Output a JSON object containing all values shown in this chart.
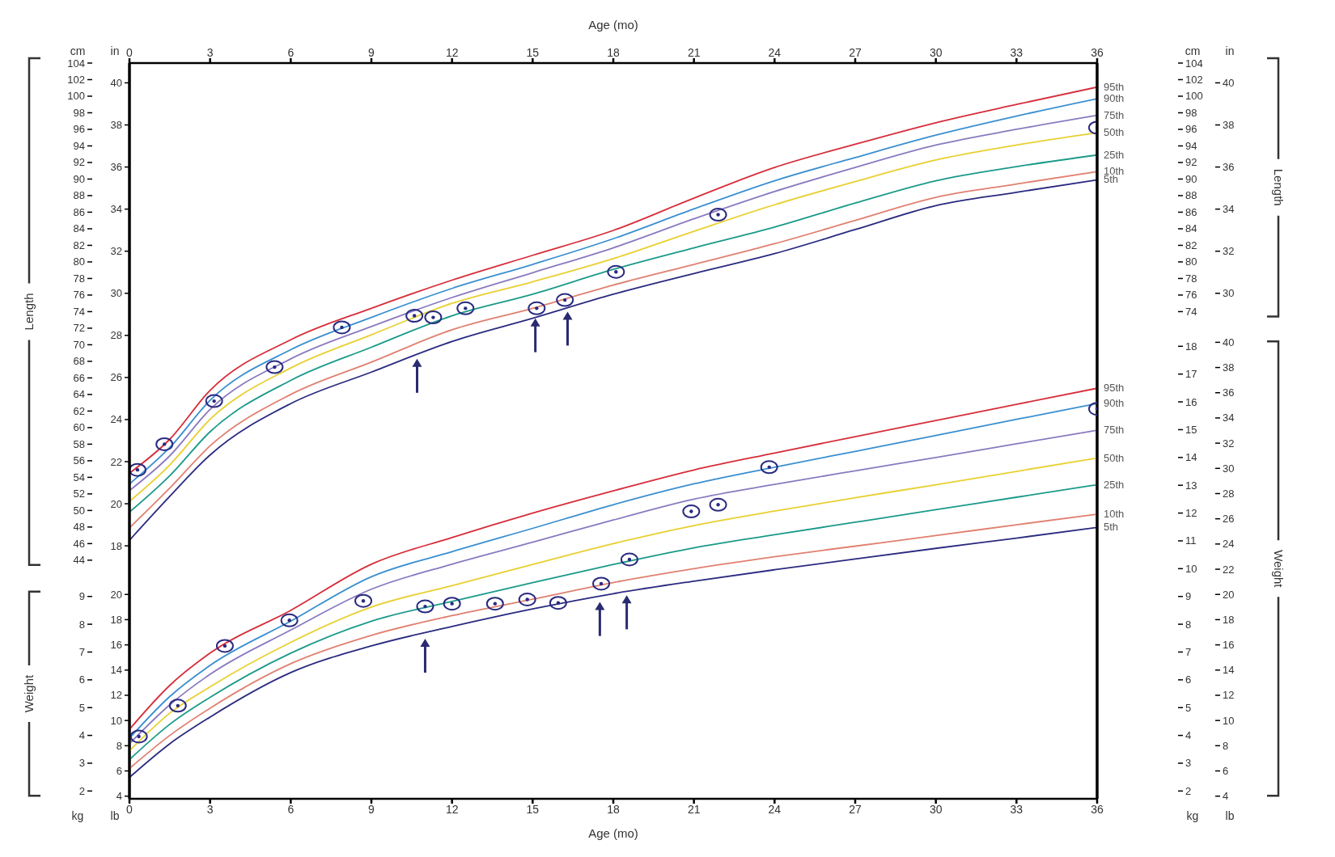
{
  "chart_data": [
    {
      "type": "line",
      "xlabel": "Age (mo)",
      "xlim": [
        0,
        36
      ],
      "xticks": [
        0,
        3,
        6,
        9,
        12,
        15,
        18,
        21,
        24,
        27,
        30,
        33,
        36
      ],
      "ylabel": "cm",
      "ylim": [
        15.2,
        104
      ],
      "yticks": [
        44,
        46,
        48,
        50,
        52,
        54,
        56,
        58,
        60,
        62,
        64,
        66,
        68,
        70,
        72,
        74,
        76,
        78,
        80,
        82,
        84,
        86,
        88,
        90,
        92,
        94,
        96,
        98,
        100,
        102,
        104
      ],
      "y2label": "cm",
      "y2lim": [
        15.2,
        104
      ],
      "y2ticks": [
        74,
        76,
        78,
        80,
        82,
        84,
        86,
        88,
        90,
        92,
        94,
        96,
        98,
        100,
        102,
        104
      ],
      "annotations": [
        "Length"
      ],
      "grid": false,
      "legend": false,
      "marker": "none",
      "line_style": "solid",
      "x": [
        0,
        1.5,
        3,
        6,
        9,
        12,
        15,
        18,
        21,
        24,
        27,
        30,
        33,
        36
      ],
      "series": [
        {
          "name": "95th",
          "color": "#d62d3a",
          "values": [
            54.5,
            58.6,
            64.5,
            70.6,
            74.4,
            77.8,
            80.8,
            83.8,
            87.7,
            91.4,
            94.2,
            96.8,
            99.0,
            101.1
          ]
        },
        {
          "name": "90th",
          "color": "#3a8fd0",
          "values": [
            53.2,
            57.6,
            63.3,
            69.4,
            73.3,
            76.8,
            79.7,
            82.8,
            86.4,
            89.8,
            92.6,
            95.3,
            97.6,
            99.7
          ]
        },
        {
          "name": "75th",
          "color": "#8a7ac0",
          "values": [
            52.4,
            56.6,
            62.2,
            68.3,
            72.2,
            75.7,
            78.7,
            81.7,
            85.2,
            88.5,
            91.4,
            94.1,
            96.0,
            97.7
          ]
        },
        {
          "name": "50th",
          "color": "#e8d030",
          "values": [
            51.1,
            55.5,
            61.0,
            67.2,
            71.2,
            75.0,
            77.6,
            80.4,
            83.7,
            86.9,
            89.7,
            92.3,
            94.1,
            95.6
          ]
        },
        {
          "name": "25th",
          "color": "#1a9a8a",
          "values": [
            49.8,
            54.2,
            59.5,
            65.7,
            69.7,
            73.5,
            76.1,
            79.1,
            81.7,
            84.2,
            87.1,
            89.8,
            91.5,
            92.9
          ]
        },
        {
          "name": "10th",
          "color": "#e08070",
          "values": [
            47.9,
            52.7,
            57.8,
            64.0,
            67.9,
            71.8,
            74.4,
            77.2,
            79.7,
            82.2,
            85.0,
            87.8,
            89.4,
            90.9
          ]
        },
        {
          "name": "5th",
          "color": "#2a2a80",
          "values": [
            46.4,
            51.7,
            56.7,
            62.9,
            66.7,
            70.4,
            73.2,
            76.1,
            78.6,
            81.0,
            83.9,
            86.8,
            88.4,
            89.9
          ]
        },
        {
          "type": "scatter",
          "marker": "circle",
          "color": "#2a2a80",
          "x": [
            0.3,
            1.3,
            3.15,
            5.4,
            7.9,
            10.6,
            11.3,
            12.5,
            15.15,
            16.2,
            18.1,
            21.9,
            36
          ],
          "values": [
            54.9,
            58.0,
            63.2,
            67.3,
            72.1,
            73.5,
            73.3,
            74.4,
            74.4,
            75.4,
            78.8,
            85.7,
            96.2
          ]
        }
      ]
    },
    {
      "type": "line",
      "xlim": [
        0,
        36
      ],
      "tick_labels": "y",
      "ylabel": "in",
      "ylim": [
        5.98,
        40.94
      ],
      "yticks": [
        18,
        20,
        22,
        24,
        26,
        28,
        30,
        32,
        34,
        36,
        38,
        40
      ],
      "y2label": "in",
      "y2lim": [
        5.98,
        40.94
      ],
      "y2ticks": [
        30,
        32,
        34,
        36,
        38,
        40
      ]
    },
    {
      "type": "line",
      "xlabel": "Age (mo)",
      "xlim": [
        0,
        36
      ],
      "xticks": [
        0,
        3,
        6,
        9,
        12,
        15,
        18,
        21,
        24,
        27,
        30,
        33,
        36
      ],
      "ylabel": "kg",
      "ylim": [
        1.72,
        28.19
      ],
      "yticks": [
        2,
        3,
        4,
        5,
        6,
        7,
        8,
        9
      ],
      "y2label": "kg",
      "y2lim": [
        1.72,
        28.19
      ],
      "y2ticks": [
        2,
        3,
        4,
        5,
        6,
        7,
        8,
        9,
        10,
        11,
        12,
        13,
        14,
        15,
        16,
        17,
        18
      ],
      "annotations": [
        "Weight"
      ],
      "grid": false,
      "legend": false,
      "marker": "none",
      "line_style": "solid",
      "x": [
        0,
        1.5,
        3,
        6,
        9,
        12,
        15,
        18,
        21,
        24,
        27,
        30,
        33,
        36
      ],
      "series": [
        {
          "name": "95th",
          "color": "#d62d3a",
          "values": [
            4.22,
            5.8,
            6.96,
            8.5,
            10.16,
            11.12,
            12.0,
            12.8,
            13.55,
            14.16,
            14.75,
            15.33,
            15.91,
            16.49
          ]
        },
        {
          "name": "90th",
          "color": "#3a8fd0",
          "values": [
            3.9,
            5.4,
            6.52,
            8.11,
            9.71,
            10.61,
            11.45,
            12.3,
            13.05,
            13.65,
            14.22,
            14.79,
            15.37,
            15.94
          ]
        },
        {
          "name": "75th",
          "color": "#8a7ac0",
          "values": [
            3.7,
            5.1,
            6.2,
            7.79,
            9.26,
            10.16,
            10.95,
            11.75,
            12.5,
            13.03,
            13.52,
            14.0,
            14.49,
            14.98
          ]
        },
        {
          "name": "50th",
          "color": "#e8d030",
          "values": [
            3.45,
            4.8,
            5.75,
            7.35,
            8.62,
            9.39,
            10.15,
            10.9,
            11.55,
            12.07,
            12.55,
            13.02,
            13.5,
            13.98
          ]
        },
        {
          "name": "25th",
          "color": "#1a9a8a",
          "values": [
            3.13,
            4.4,
            5.37,
            6.96,
            8.11,
            8.82,
            9.5,
            10.15,
            10.75,
            11.22,
            11.67,
            12.12,
            12.57,
            13.02
          ]
        },
        {
          "name": "10th",
          "color": "#e08070",
          "values": [
            2.81,
            4.0,
            4.98,
            6.58,
            7.6,
            8.31,
            8.9,
            9.5,
            10.0,
            10.43,
            10.81,
            11.19,
            11.58,
            11.96
          ]
        },
        {
          "name": "5th",
          "color": "#2a2a80",
          "values": [
            2.49,
            3.7,
            4.66,
            6.26,
            7.22,
            7.92,
            8.55,
            9.1,
            9.55,
            9.96,
            10.35,
            10.73,
            11.1,
            11.48
          ]
        },
        {
          "type": "scatter",
          "marker": "circle",
          "color": "#2a2a80",
          "x": [
            0.35,
            1.8,
            3.55,
            5.95,
            8.7,
            11.0,
            12.0,
            13.6,
            14.8,
            15.95,
            17.55,
            18.6,
            20.9,
            21.9,
            23.8,
            36
          ],
          "values": [
            3.96,
            5.07,
            7.22,
            8.14,
            8.84,
            8.64,
            8.74,
            8.74,
            8.89,
            8.77,
            9.46,
            10.33,
            12.06,
            12.3,
            13.65,
            15.75
          ]
        }
      ]
    },
    {
      "type": "line",
      "xlim": [
        0,
        36
      ],
      "tick_labels": "y",
      "ylabel": "lb",
      "ylim": [
        3.79,
        62.15
      ],
      "yticks": [
        4,
        6,
        8,
        10,
        12,
        14,
        16,
        18,
        20
      ],
      "y2label": "lb",
      "y2lim": [
        3.79,
        62.15
      ],
      "y2ticks": [
        4,
        6,
        8,
        10,
        12,
        14,
        16,
        18,
        20,
        22,
        24,
        26,
        28,
        30,
        32,
        34,
        36,
        38,
        40
      ]
    }
  ]
}
